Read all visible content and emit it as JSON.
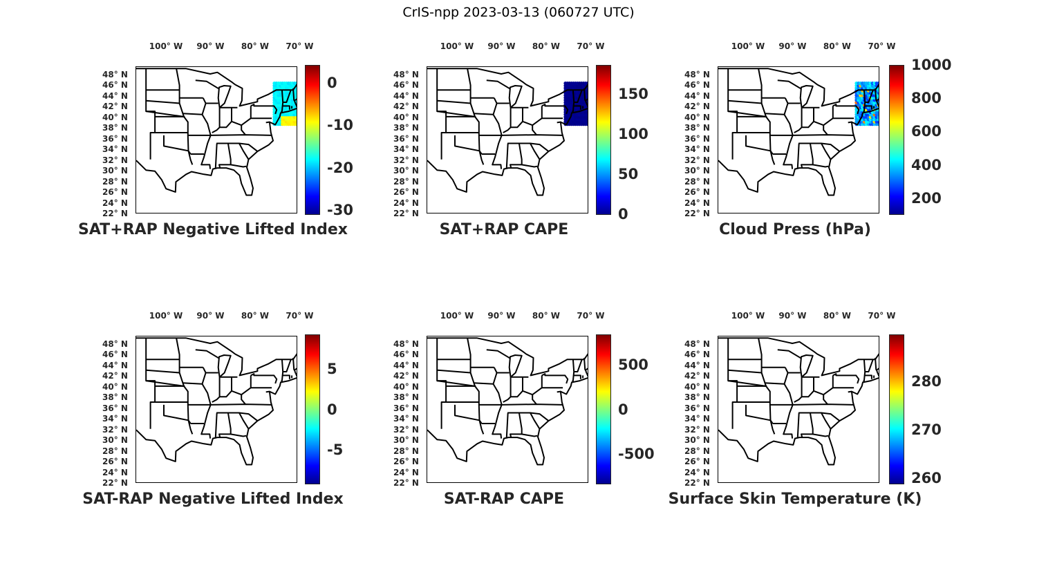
{
  "suptitle": "CrIS-npp 2023-03-13 (060727 UTC)",
  "lon_labels": [
    "100° W",
    "90° W",
    "80° W",
    "70° W"
  ],
  "lat_labels": [
    "48° N",
    "46° N",
    "44° N",
    "42° N",
    "40° N",
    "38° N",
    "36° N",
    "34° N",
    "32° N",
    "30° N",
    "28° N",
    "26° N",
    "24° N",
    "22° N"
  ],
  "panels": [
    {
      "title": "SAT+RAP Negative Lifted Index",
      "clim": [
        -31.1,
        4.2
      ],
      "ticks": [
        "0",
        "-10",
        "-20",
        "-30"
      ],
      "tick_values": [
        0,
        -10,
        -20,
        -30
      ],
      "swath": "lifted",
      "data_region": "Northeast US / New England swath"
    },
    {
      "title": "SAT+RAP CAPE",
      "clim": [
        -1,
        186
      ],
      "ticks": [
        "150",
        "100",
        "50",
        "0"
      ],
      "tick_values": [
        150,
        100,
        50,
        0
      ],
      "swath": "cape"
    },
    {
      "title": "Cloud Press (hPa)",
      "clim": [
        100,
        1000
      ],
      "ticks": [
        "1000",
        "800",
        "600",
        "400",
        "200"
      ],
      "tick_values": [
        1000,
        800,
        600,
        400,
        200
      ],
      "swath": "cloud"
    },
    {
      "title": "SAT-RAP Negative Lifted Index",
      "clim": [
        -9.2,
        9.2
      ],
      "ticks": [
        "5",
        "0",
        "-5"
      ],
      "tick_values": [
        5,
        0,
        -5
      ],
      "swath": "dot"
    },
    {
      "title": "SAT-RAP CAPE",
      "clim": [
        -835,
        835
      ],
      "ticks": [
        "500",
        "0",
        "-500"
      ],
      "tick_values": [
        500,
        0,
        -500
      ],
      "swath": "dot"
    },
    {
      "title": "Surface Skin Temperature (K)",
      "clim": [
        258.7,
        289.7
      ],
      "ticks": [
        "280",
        "270",
        "260"
      ],
      "tick_values": [
        280,
        270,
        260
      ],
      "swath": "dot"
    }
  ]
}
